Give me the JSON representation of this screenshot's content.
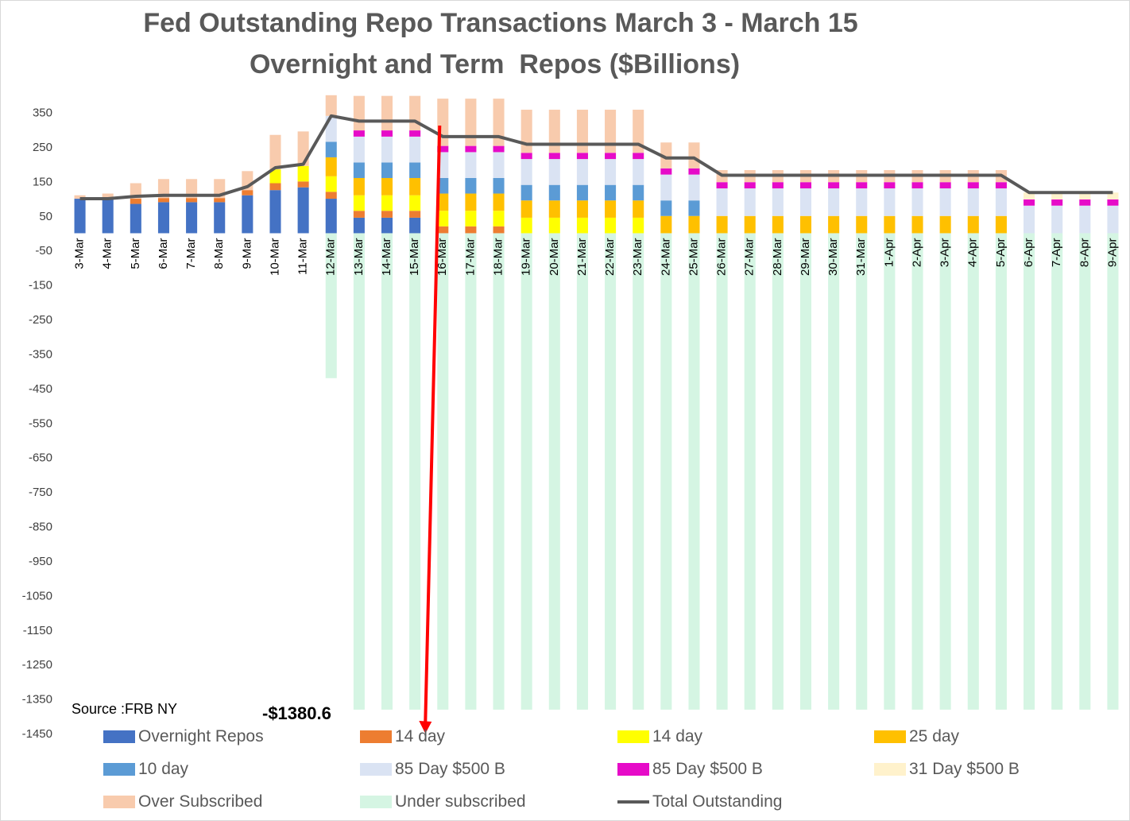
{
  "chart_data": {
    "type": "bar",
    "title": "Fed Outstanding Repo Transactions March 3 - March 15",
    "subtitle": "Overnight and Term  Repos ($Billions)",
    "source": "Source :FRB NY",
    "annotation": "-$1380.6",
    "ylim": [
      -1450,
      400
    ],
    "yticks": [
      350,
      250,
      150,
      50,
      -50,
      -150,
      -250,
      -350,
      -450,
      -550,
      -650,
      -750,
      -850,
      -950,
      -1050,
      -1150,
      -1250,
      -1350,
      -1450
    ],
    "grid": false,
    "legend_position": "bottom",
    "categories": [
      "3-Mar",
      "4-Mar",
      "5-Mar",
      "6-Mar",
      "7-Mar",
      "8-Mar",
      "9-Mar",
      "10-Mar",
      "11-Mar",
      "12-Mar",
      "13-Mar",
      "14-Mar",
      "15-Mar",
      "16-Mar",
      "17-Mar",
      "18-Mar",
      "19-Mar",
      "20-Mar",
      "21-Mar",
      "22-Mar",
      "23-Mar",
      "24-Mar",
      "25-Mar",
      "26-Mar",
      "27-Mar",
      "28-Mar",
      "29-Mar",
      "30-Mar",
      "31-Mar",
      "1-Apr",
      "2-Apr",
      "3-Apr",
      "4-Apr",
      "5-Apr",
      "6-Apr",
      "7-Apr",
      "8-Apr",
      "9-Apr"
    ],
    "series": [
      {
        "name": "Overnight Repos",
        "color": "#4472C4",
        "kind": "stack",
        "values": [
          100,
          100,
          85,
          90,
          90,
          90,
          110,
          125,
          133,
          100,
          45,
          45,
          45,
          0,
          0,
          0,
          0,
          0,
          0,
          0,
          0,
          0,
          0,
          0,
          0,
          0,
          0,
          0,
          0,
          0,
          0,
          0,
          0,
          0,
          0,
          0,
          0,
          0
        ]
      },
      {
        "name": "14 day",
        "color": "#ED7D31",
        "kind": "stack",
        "values": [
          0,
          0,
          15,
          12,
          12,
          12,
          15,
          20,
          17,
          20,
          20,
          20,
          20,
          20,
          20,
          20,
          0,
          0,
          0,
          0,
          0,
          0,
          0,
          0,
          0,
          0,
          0,
          0,
          0,
          0,
          0,
          0,
          0,
          0,
          0,
          0,
          0,
          0
        ]
      },
      {
        "name": "14 day",
        "color": "#FFFF00",
        "kind": "stack",
        "values": [
          0,
          0,
          0,
          0,
          0,
          0,
          0,
          40,
          45,
          45,
          45,
          45,
          45,
          45,
          45,
          45,
          45,
          45,
          45,
          45,
          45,
          0,
          0,
          0,
          0,
          0,
          0,
          0,
          0,
          0,
          0,
          0,
          0,
          0,
          0,
          0,
          0,
          0
        ]
      },
      {
        "name": "25 day",
        "color": "#FFC000",
        "kind": "stack",
        "values": [
          0,
          0,
          0,
          0,
          0,
          0,
          0,
          0,
          0,
          55,
          50,
          50,
          50,
          50,
          50,
          50,
          50,
          50,
          50,
          50,
          50,
          50,
          50,
          50,
          50,
          50,
          50,
          50,
          50,
          50,
          50,
          50,
          50,
          50,
          0,
          0,
          0,
          0
        ]
      },
      {
        "name": "10 day",
        "color": "#5B9BD5",
        "kind": "stack",
        "values": [
          0,
          0,
          0,
          0,
          0,
          0,
          0,
          0,
          0,
          45,
          45,
          45,
          45,
          45,
          45,
          45,
          45,
          45,
          45,
          45,
          45,
          45,
          45,
          0,
          0,
          0,
          0,
          0,
          0,
          0,
          0,
          0,
          0,
          0,
          0,
          0,
          0,
          0
        ]
      },
      {
        "name": "85 Day $500 B",
        "color": "#DAE3F3",
        "kind": "stack",
        "values": [
          0,
          0,
          0,
          0,
          0,
          0,
          0,
          0,
          0,
          75,
          75,
          75,
          75,
          75,
          75,
          75,
          75,
          75,
          75,
          75,
          75,
          75,
          75,
          80,
          80,
          80,
          80,
          80,
          80,
          80,
          80,
          80,
          80,
          80,
          80,
          80,
          80,
          80
        ]
      },
      {
        "name": "85 Day $500 B",
        "color": "#E60BC8",
        "kind": "stack",
        "values": [
          0,
          0,
          0,
          0,
          0,
          0,
          0,
          0,
          0,
          0,
          18,
          18,
          18,
          18,
          18,
          18,
          18,
          18,
          18,
          18,
          18,
          18,
          18,
          18,
          18,
          18,
          18,
          18,
          18,
          18,
          18,
          18,
          18,
          18,
          18,
          18,
          18,
          18
        ]
      },
      {
        "name": "31 Day $500 B",
        "color": "#FFF2CC",
        "kind": "stack",
        "values": [
          0,
          0,
          0,
          0,
          0,
          0,
          0,
          0,
          0,
          0,
          0,
          0,
          0,
          0,
          0,
          0,
          0,
          0,
          0,
          0,
          0,
          0,
          0,
          0,
          0,
          0,
          0,
          0,
          0,
          0,
          0,
          0,
          0,
          0,
          20,
          20,
          20,
          20
        ]
      },
      {
        "name": "Over Subscribed",
        "color": "#F8CBAD",
        "kind": "stack",
        "values": [
          10,
          15,
          45,
          55,
          55,
          55,
          55,
          100,
          100,
          60,
          100,
          100,
          100,
          137,
          137,
          137,
          125,
          125,
          125,
          125,
          125,
          75,
          75,
          35,
          35,
          35,
          35,
          35,
          35,
          35,
          35,
          35,
          35,
          35,
          0,
          0,
          0,
          0
        ]
      },
      {
        "name": "Under subscribed",
        "color": "#D5F5E3",
        "kind": "negative",
        "values": [
          0,
          0,
          0,
          0,
          0,
          0,
          0,
          0,
          0,
          -420,
          -1380.6,
          -1380.6,
          -1380.6,
          -1380.6,
          -1380.6,
          -1380.6,
          -1380.6,
          -1380.6,
          -1380.6,
          -1380.6,
          -1380.6,
          -1380.6,
          -1380.6,
          -1380.6,
          -1380.6,
          -1380.6,
          -1380.6,
          -1380.6,
          -1380.6,
          -1380.6,
          -1380.6,
          -1380.6,
          -1380.6,
          -1380.6,
          -1380.6,
          -1380.6,
          -1380.6,
          -1380.6
        ]
      },
      {
        "name": "Total Outstanding",
        "color": "#595959",
        "kind": "line",
        "values": [
          100,
          100,
          107,
          110,
          110,
          110,
          135,
          190,
          200,
          340,
          325,
          325,
          325,
          280,
          280,
          280,
          258,
          258,
          258,
          258,
          258,
          218,
          218,
          168,
          168,
          168,
          168,
          168,
          168,
          168,
          168,
          168,
          168,
          168,
          118,
          118,
          118,
          118
        ]
      }
    ],
    "arrow": {
      "color": "#FF0000",
      "from_category": "16-Mar",
      "from_value": 312,
      "to_value": -1450
    }
  }
}
